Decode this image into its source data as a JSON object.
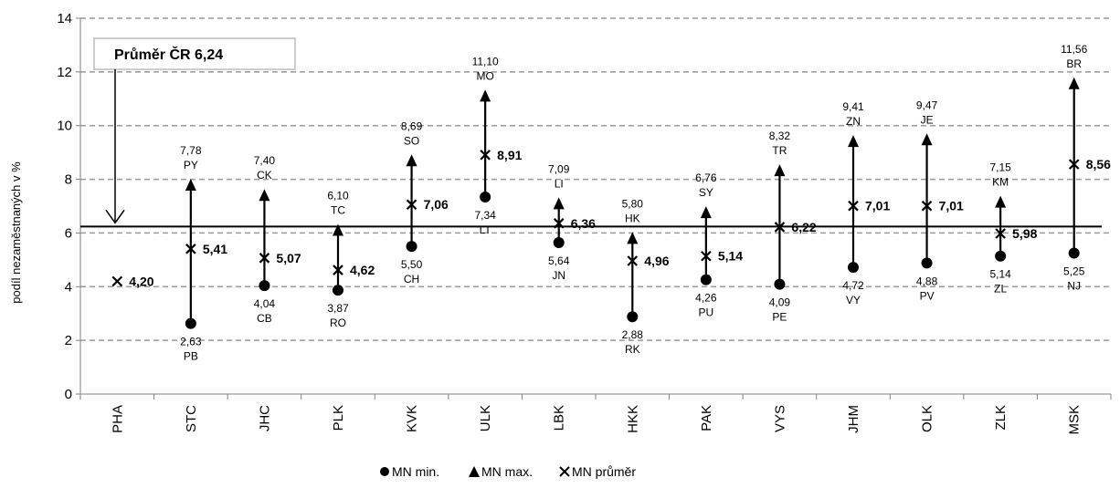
{
  "chart_data": {
    "type": "scatter",
    "ylabel": "podíl nezaměstnaných v %",
    "ylim": [
      0,
      14
    ],
    "yticks": [
      0,
      2,
      4,
      6,
      8,
      10,
      12,
      14
    ],
    "grid": "horizontal dashed",
    "legend_position": "bottom",
    "legend": [
      {
        "symbol": "circle",
        "label": "MN min."
      },
      {
        "symbol": "triangle",
        "label": "MN max."
      },
      {
        "symbol": "cross",
        "label": "MN průměr"
      }
    ],
    "reference": {
      "label": "Průměr ČR 6,24",
      "value": 6.24
    },
    "categories": [
      "PHA",
      "STC",
      "JHC",
      "PLK",
      "KVK",
      "ULK",
      "LBK",
      "HKK",
      "PAK",
      "VYS",
      "JHM",
      "OLK",
      "ZLK",
      "MSK"
    ],
    "points": [
      {
        "cat": "PHA",
        "mean": 4.2,
        "mean_label": "4,20"
      },
      {
        "cat": "STC",
        "min": 2.63,
        "min_label": "2,63",
        "min_code": "PB",
        "max": 7.78,
        "max_label": "7,78",
        "max_code": "PY",
        "mean": 5.41,
        "mean_label": "5,41"
      },
      {
        "cat": "JHC",
        "min": 4.04,
        "min_label": "4,04",
        "min_code": "CB",
        "max": 7.4,
        "max_label": "7,40",
        "max_code": "CK",
        "mean": 5.07,
        "mean_label": "5,07"
      },
      {
        "cat": "PLK",
        "min": 3.87,
        "min_label": "3,87",
        "min_code": "RO",
        "max": 6.1,
        "max_label": "6,10",
        "max_code": "TC",
        "mean": 4.62,
        "mean_label": "4,62"
      },
      {
        "cat": "KVK",
        "min": 5.5,
        "min_label": "5,50",
        "min_code": "CH",
        "max": 8.69,
        "max_label": "8,69",
        "max_code": "SO",
        "mean": 7.06,
        "mean_label": "7,06"
      },
      {
        "cat": "ULK",
        "min": 7.34,
        "min_label": "7,34",
        "min_code": "LT",
        "max": 11.1,
        "max_label": "11,10",
        "max_code": "MO",
        "mean": 8.91,
        "mean_label": "8,91"
      },
      {
        "cat": "LBK",
        "min": 5.64,
        "min_label": "5,64",
        "min_code": "JN",
        "max": 7.09,
        "max_label": "7,09",
        "max_code": "LI",
        "mean": 6.36,
        "mean_label": "6,36"
      },
      {
        "cat": "HKK",
        "min": 2.88,
        "min_label": "2,88",
        "min_code": "RK",
        "max": 5.8,
        "max_label": "5,80",
        "max_code": "HK",
        "mean": 4.96,
        "mean_label": "4,96"
      },
      {
        "cat": "PAK",
        "min": 4.26,
        "min_label": "4,26",
        "min_code": "PU",
        "max": 6.76,
        "max_label": "6,76",
        "max_code": "SY",
        "mean": 5.14,
        "mean_label": "5,14"
      },
      {
        "cat": "VYS",
        "min": 4.09,
        "min_label": "4,09",
        "min_code": "PE",
        "max": 8.32,
        "max_label": "8,32",
        "max_code": "TR",
        "mean": 6.22,
        "mean_label": "6,22"
      },
      {
        "cat": "JHM",
        "min": 4.72,
        "min_label": "4,72",
        "min_code": "VY",
        "max": 9.41,
        "max_label": "9,41",
        "max_code": "ZN",
        "mean": 7.01,
        "mean_label": "7,01"
      },
      {
        "cat": "OLK",
        "min": 4.88,
        "min_label": "4,88",
        "min_code": "PV",
        "max": 9.47,
        "max_label": "9,47",
        "max_code": "JE",
        "mean": 7.01,
        "mean_label": "7,01"
      },
      {
        "cat": "ZLK",
        "min": 5.14,
        "min_label": "5,14",
        "min_code": "ZL",
        "max": 7.15,
        "max_label": "7,15",
        "max_code": "KM",
        "mean": 5.98,
        "mean_label": "5,98"
      },
      {
        "cat": "MSK",
        "min": 5.25,
        "min_label": "5,25",
        "min_code": "NJ",
        "max": 11.56,
        "max_label": "11,56",
        "max_code": "BR",
        "mean": 8.56,
        "mean_label": "8,56"
      }
    ]
  }
}
